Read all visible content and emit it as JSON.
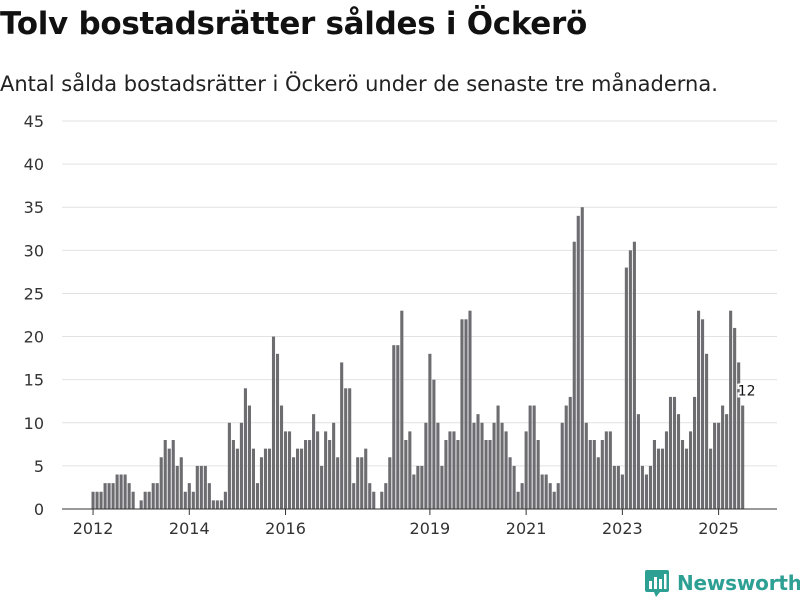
{
  "chart_data": {
    "type": "bar",
    "title": "Tolv bostadsrätter såldes i Öckerö",
    "subtitle": "Antal sålda bostadsrätter i Öckerö under de senaste tre månaderna.",
    "xlabel": "",
    "ylabel": "",
    "ylim": [
      0,
      45
    ],
    "yticks": [
      0,
      5,
      10,
      15,
      20,
      25,
      30,
      35,
      40,
      45
    ],
    "grid": true,
    "xtick_labels": [
      {
        "label": "2012",
        "index": 0
      },
      {
        "label": "2014",
        "index": 24
      },
      {
        "label": "2016",
        "index": 48
      },
      {
        "label": "2019",
        "index": 84
      },
      {
        "label": "2021",
        "index": 108
      },
      {
        "label": "2023",
        "index": 132
      },
      {
        "label": "2025",
        "index": 156
      }
    ],
    "series": [
      {
        "name": "Antal sålda bostadsrätter",
        "values": [
          2,
          2,
          2,
          3,
          3,
          3,
          4,
          4,
          4,
          3,
          2,
          0,
          1,
          2,
          2,
          3,
          3,
          6,
          8,
          7,
          8,
          5,
          6,
          2,
          3,
          2,
          5,
          5,
          5,
          3,
          1,
          1,
          1,
          2,
          10,
          8,
          7,
          10,
          14,
          12,
          7,
          3,
          6,
          7,
          7,
          20,
          18,
          12,
          9,
          9,
          6,
          7,
          7,
          8,
          8,
          11,
          9,
          5,
          9,
          8,
          10,
          6,
          17,
          14,
          14,
          3,
          6,
          6,
          7,
          3,
          2,
          0,
          2,
          3,
          6,
          19,
          19,
          23,
          8,
          9,
          4,
          5,
          5,
          10,
          18,
          15,
          10,
          5,
          8,
          9,
          9,
          8,
          22,
          22,
          23,
          10,
          11,
          10,
          8,
          8,
          10,
          12,
          10,
          9,
          6,
          5,
          2,
          3,
          9,
          12,
          12,
          8,
          4,
          4,
          3,
          2,
          3,
          10,
          12,
          13,
          31,
          34,
          35,
          10,
          8,
          8,
          6,
          8,
          9,
          9,
          5,
          5,
          4,
          28,
          30,
          31,
          11,
          5,
          4,
          5,
          8,
          7,
          7,
          9,
          13,
          13,
          11,
          8,
          7,
          9,
          13,
          23,
          22,
          18,
          7,
          10,
          10,
          12,
          11,
          23,
          21,
          17,
          12
        ]
      }
    ],
    "highlight": {
      "index": 163,
      "value": 12,
      "label": "12",
      "color": "#16998c"
    },
    "bar_color": "#6d6c71"
  },
  "brand": {
    "name": "Newsworthy",
    "icon": "newsworthy-logo-icon",
    "color": "#2e9f93"
  }
}
